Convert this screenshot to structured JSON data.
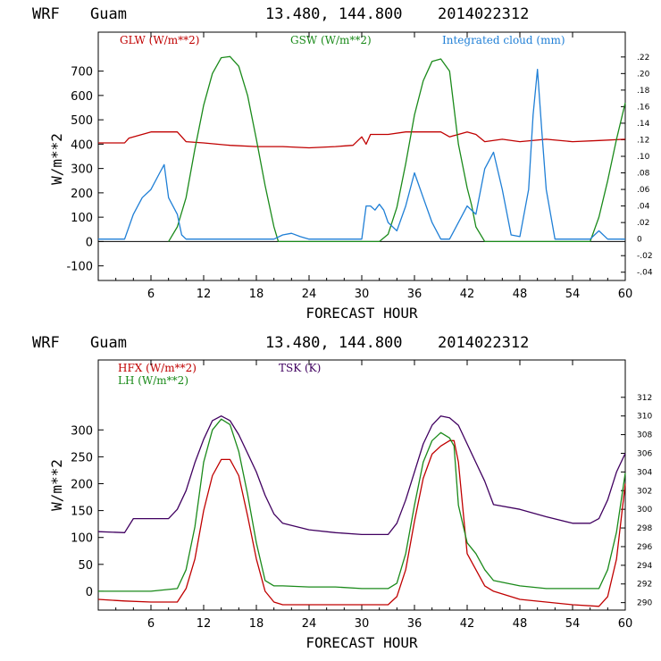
{
  "colors": {
    "red": "#c00000",
    "green": "#1a8a1a",
    "blue": "#1f7fd6",
    "purple": "#400060",
    "axis": "#000000"
  },
  "chart_data": [
    {
      "type": "line",
      "header": {
        "model": "WRF",
        "station": "Guam",
        "coords": "13.480, 144.800",
        "run": "2014022312"
      },
      "xlabel": "FORECAST HOUR",
      "ylabel": "W/m**2",
      "xlim": [
        0,
        60
      ],
      "ylim": [
        -160,
        860
      ],
      "y2lim": [
        -0.05,
        0.25
      ],
      "xticks": [
        "6",
        "12",
        "18",
        "24",
        "30",
        "36",
        "42",
        "48",
        "54",
        "60"
      ],
      "yticks": [
        "-100",
        "0",
        "100",
        "200",
        "300",
        "400",
        "500",
        "600",
        "700"
      ],
      "y2ticks": [
        "-.04",
        "-.02",
        "0",
        ".02",
        ".04",
        ".06",
        ".08",
        ".10",
        ".12",
        ".14",
        ".16",
        ".18",
        ".20",
        ".22"
      ],
      "series": [
        {
          "name": "GLW (W/m**2)",
          "axis": "left",
          "color": "red",
          "x": [
            0,
            3,
            3.5,
            6,
            7,
            9,
            10,
            12,
            15,
            18,
            21,
            24,
            27,
            29,
            30,
            30.5,
            31,
            33,
            35,
            37,
            39,
            40,
            42,
            43,
            44,
            46,
            48,
            51,
            54,
            57,
            60
          ],
          "y": [
            405,
            405,
            425,
            450,
            450,
            450,
            410,
            405,
            395,
            390,
            390,
            385,
            390,
            395,
            430,
            400,
            440,
            440,
            450,
            450,
            450,
            430,
            450,
            440,
            410,
            420,
            410,
            420,
            410,
            415,
            420
          ]
        },
        {
          "name": "GSW (W/m**2)",
          "axis": "left",
          "color": "green",
          "x": [
            8,
            9,
            10,
            11,
            12,
            13,
            14,
            15,
            16,
            17,
            18,
            19,
            20,
            20.5,
            32,
            33,
            34,
            35,
            36,
            37,
            38,
            39,
            40,
            41,
            42,
            42.5,
            43,
            44,
            56,
            57,
            58,
            59,
            60
          ],
          "y": [
            0,
            60,
            180,
            380,
            560,
            690,
            755,
            760,
            720,
            600,
            420,
            230,
            60,
            0,
            0,
            30,
            140,
            320,
            520,
            660,
            740,
            750,
            700,
            400,
            220,
            150,
            60,
            0,
            0,
            100,
            250,
            420,
            570
          ]
        },
        {
          "name": "Integrated cloud (mm)",
          "axis": "right",
          "color": "blue",
          "x": [
            0,
            3,
            4,
            5,
            6,
            7,
            7.5,
            8,
            9,
            9.5,
            10,
            11,
            20,
            21,
            22,
            23,
            24,
            30,
            30.5,
            31,
            31.5,
            32,
            32.5,
            33,
            34,
            35,
            36,
            36.5,
            37,
            38,
            39,
            40,
            41,
            42,
            43,
            44,
            45,
            46,
            47,
            48,
            49,
            49.5,
            50,
            50.5,
            51,
            52,
            56,
            57,
            58,
            60
          ],
          "y": [
            0,
            0,
            0.03,
            0.05,
            0.06,
            0.08,
            0.09,
            0.05,
            0.03,
            0.005,
            0,
            0,
            0,
            0.005,
            0.007,
            0.003,
            0,
            0,
            0.04,
            0.04,
            0.035,
            0.042,
            0.035,
            0.02,
            0.01,
            0.04,
            0.08,
            0.065,
            0.05,
            0.02,
            0,
            0,
            0.02,
            0.04,
            0.03,
            0.085,
            0.105,
            0.06,
            0.005,
            0.003,
            0.06,
            0.15,
            0.205,
            0.13,
            0.06,
            0,
            0,
            0.01,
            0,
            0
          ]
        }
      ]
    },
    {
      "type": "line",
      "header": {
        "model": "WRF",
        "station": "Guam",
        "coords": "13.480, 144.800",
        "run": "2014022312"
      },
      "xlabel": "FORECAST HOUR",
      "ylabel": "W/m**2",
      "xlim": [
        0,
        60
      ],
      "ylim": [
        -35,
        430
      ],
      "y2lim": [
        289.2,
        316
      ],
      "xticks": [
        "6",
        "12",
        "18",
        "24",
        "30",
        "36",
        "42",
        "48",
        "54",
        "60"
      ],
      "yticks": [
        "0",
        "50",
        "100",
        "150",
        "200",
        "250",
        "300"
      ],
      "y2ticks": [
        "290",
        "292",
        "294",
        "296",
        "298",
        "300",
        "302",
        "304",
        "306",
        "308",
        "310",
        "312"
      ],
      "series": [
        {
          "name": "HFX (W/m**2)",
          "axis": "left",
          "color": "red",
          "x": [
            0,
            3,
            6,
            9,
            10,
            11,
            12,
            13,
            14,
            15,
            16,
            17,
            18,
            19,
            20,
            21,
            24,
            27,
            30,
            33,
            34,
            35,
            36,
            37,
            38,
            39,
            40,
            40.5,
            41,
            42,
            43,
            44,
            45,
            48,
            51,
            54,
            57,
            58,
            59,
            60
          ],
          "y": [
            -15,
            -18,
            -20,
            -20,
            5,
            60,
            150,
            215,
            245,
            245,
            215,
            140,
            60,
            0,
            -20,
            -25,
            -25,
            -25,
            -25,
            -25,
            -10,
            40,
            130,
            210,
            255,
            270,
            280,
            280,
            240,
            70,
            40,
            10,
            0,
            -15,
            -20,
            -25,
            -28,
            -10,
            60,
            200
          ]
        },
        {
          "name": "LH (W/m**2)",
          "axis": "left",
          "color": "green",
          "x": [
            0,
            3,
            6,
            9,
            10,
            11,
            12,
            13,
            14,
            15,
            16,
            17,
            18,
            19,
            20,
            21,
            24,
            27,
            30,
            33,
            34,
            35,
            36,
            37,
            38,
            39,
            40,
            40.5,
            41,
            42,
            43,
            44,
            45,
            48,
            51,
            54,
            57,
            58,
            59,
            60
          ],
          "y": [
            0,
            0,
            0,
            5,
            40,
            120,
            240,
            300,
            320,
            310,
            260,
            180,
            90,
            20,
            10,
            10,
            8,
            8,
            5,
            5,
            15,
            70,
            160,
            240,
            280,
            295,
            285,
            270,
            160,
            90,
            70,
            40,
            20,
            10,
            5,
            5,
            5,
            40,
            110,
            220
          ]
        },
        {
          "name": "TSK (K)",
          "axis": "right",
          "color": "purple",
          "x": [
            0,
            3,
            4,
            8,
            9,
            10,
            11,
            12,
            13,
            14,
            15,
            16,
            17,
            18,
            19,
            20,
            21,
            24,
            27,
            30,
            33,
            34,
            35,
            36,
            37,
            38,
            39,
            40,
            41,
            42,
            43,
            44,
            45,
            48,
            51,
            54,
            56,
            57,
            58,
            59,
            60
          ],
          "y": [
            297.6,
            297.5,
            299,
            299,
            300,
            302,
            305,
            307.5,
            309.5,
            310,
            309.5,
            308,
            306,
            304,
            301.5,
            299.5,
            298.5,
            297.8,
            297.5,
            297.3,
            297.3,
            298.5,
            301,
            304,
            307,
            309,
            310,
            309.8,
            309,
            307,
            305,
            303,
            300.5,
            300,
            299.2,
            298.5,
            298.5,
            299,
            301,
            304,
            306
          ]
        }
      ]
    }
  ]
}
